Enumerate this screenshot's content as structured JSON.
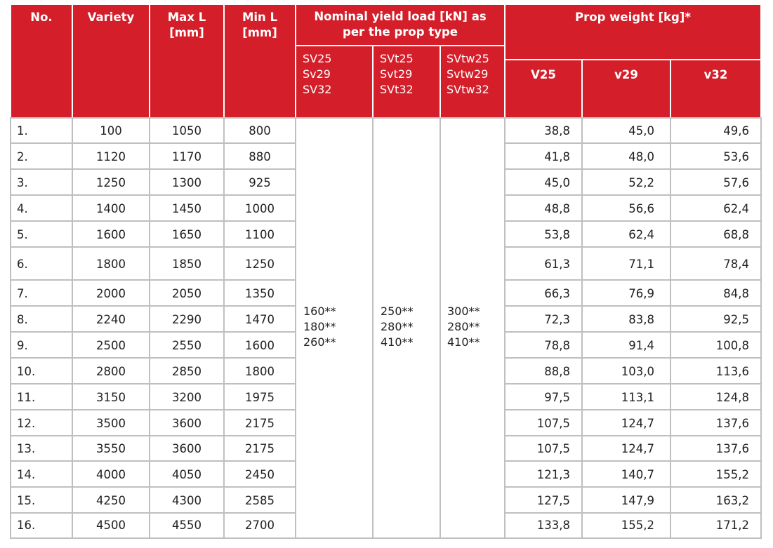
{
  "headers": {
    "no": "No.",
    "variety": "Variety",
    "max_l": "Max L\n[mm]",
    "min_l": "Min L\n[mm]",
    "yield": "Nominal yield load [kN] as\nper the prop type",
    "weight": "Prop weight [kg]*",
    "type_groups": [
      "SV25\nSv29\nSV32",
      "SVt25\nSvt29\nSVt32",
      "SVtw25\nSvtw29\nSVtw32"
    ],
    "weights": [
      "V25",
      "v29",
      "v32"
    ]
  },
  "yield_values": [
    "160**\n180**\n260**",
    "250**\n280**\n410**",
    "300**\n280**\n410**"
  ],
  "rows": [
    {
      "no": "1.",
      "variety": "100",
      "max": "1050",
      "min": "800",
      "w25": "38,8",
      "w29": "45,0",
      "w32": "49,6"
    },
    {
      "no": "2.",
      "variety": "1120",
      "max": "1170",
      "min": "880",
      "w25": "41,8",
      "w29": "48,0",
      "w32": "53,6"
    },
    {
      "no": "3.",
      "variety": "1250",
      "max": "1300",
      "min": "925",
      "w25": "45,0",
      "w29": "52,2",
      "w32": "57,6"
    },
    {
      "no": "4.",
      "variety": "1400",
      "max": "1450",
      "min": "1000",
      "w25": "48,8",
      "w29": "56,6",
      "w32": "62,4"
    },
    {
      "no": "5.",
      "variety": "1600",
      "max": "1650",
      "min": "1100",
      "w25": "53,8",
      "w29": "62,4",
      "w32": "68,8"
    },
    {
      "no": "6.",
      "variety": "1800",
      "max": "1850",
      "min": "1250",
      "w25": "61,3",
      "w29": "71,1",
      "w32": "78,4"
    },
    {
      "no": "7.",
      "variety": "2000",
      "max": "2050",
      "min": "1350",
      "w25": "66,3",
      "w29": "76,9",
      "w32": "84,8"
    },
    {
      "no": "8.",
      "variety": "2240",
      "max": "2290",
      "min": "1470",
      "w25": "72,3",
      "w29": "83,8",
      "w32": "92,5"
    },
    {
      "no": "9.",
      "variety": "2500",
      "max": "2550",
      "min": "1600",
      "w25": "78,8",
      "w29": "91,4",
      "w32": "100,8"
    },
    {
      "no": "10.",
      "variety": "2800",
      "max": "2850",
      "min": "1800",
      "w25": "88,8",
      "w29": "103,0",
      "w32": "113,6"
    },
    {
      "no": "11.",
      "variety": "3150",
      "max": "3200",
      "min": "1975",
      "w25": "97,5",
      "w29": "113,1",
      "w32": "124,8"
    },
    {
      "no": "12.",
      "variety": "3500",
      "max": "3600",
      "min": "2175",
      "w25": "107,5",
      "w29": "124,7",
      "w32": "137,6"
    },
    {
      "no": "13.",
      "variety": "3550",
      "max": "3600",
      "min": "2175",
      "w25": "107,5",
      "w29": "124,7",
      "w32": "137,6"
    },
    {
      "no": "14.",
      "variety": "4000",
      "max": "4050",
      "min": "2450",
      "w25": "121,3",
      "w29": "140,7",
      "w32": "155,2"
    },
    {
      "no": "15.",
      "variety": "4250",
      "max": "4300",
      "min": "2585",
      "w25": "127,5",
      "w29": "147,9",
      "w32": "163,2"
    },
    {
      "no": "16.",
      "variety": "4500",
      "max": "4550",
      "min": "2700",
      "w25": "133,8",
      "w29": "155,2",
      "w32": "171,2"
    }
  ]
}
